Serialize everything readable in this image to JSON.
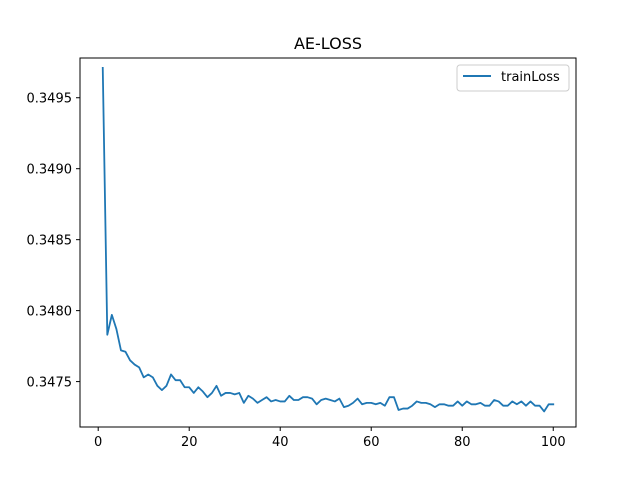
{
  "chart_data": {
    "type": "line",
    "title": "AE-LOSS",
    "xlabel": "",
    "ylabel": "",
    "xlim": [
      -4,
      105
    ],
    "ylim": [
      0.34718,
      0.34978
    ],
    "xticks": [
      0,
      20,
      40,
      60,
      80,
      100
    ],
    "xtick_labels": [
      "0",
      "20",
      "40",
      "60",
      "80",
      "100"
    ],
    "yticks": [
      0.3475,
      0.348,
      0.3485,
      0.349,
      0.3495
    ],
    "ytick_labels": [
      "0.3475",
      "0.3480",
      "0.3485",
      "0.3490",
      "0.3495"
    ],
    "grid": false,
    "legend": {
      "placement": "top-right"
    },
    "series": [
      {
        "name": "trainLoss",
        "color": "#1f77b4",
        "x": [
          1,
          2,
          3,
          4,
          5,
          6,
          7,
          8,
          9,
          10,
          11,
          12,
          13,
          14,
          15,
          16,
          17,
          18,
          19,
          20,
          21,
          22,
          23,
          24,
          25,
          26,
          27,
          28,
          29,
          30,
          31,
          32,
          33,
          34,
          35,
          36,
          37,
          38,
          39,
          40,
          41,
          42,
          43,
          44,
          45,
          46,
          47,
          48,
          49,
          50,
          51,
          52,
          53,
          54,
          55,
          56,
          57,
          58,
          59,
          60,
          61,
          62,
          63,
          64,
          65,
          66,
          67,
          68,
          69,
          70,
          71,
          72,
          73,
          74,
          75,
          76,
          77,
          78,
          79,
          80,
          81,
          82,
          83,
          84,
          85,
          86,
          87,
          88,
          89,
          90,
          91,
          92,
          93,
          94,
          95,
          96,
          97,
          98,
          99,
          100
        ],
        "values": [
          0.34971,
          0.34783,
          0.34797,
          0.34787,
          0.34772,
          0.34771,
          0.34765,
          0.34762,
          0.3476,
          0.34753,
          0.34755,
          0.34753,
          0.34747,
          0.34744,
          0.34747,
          0.34755,
          0.34751,
          0.34751,
          0.34746,
          0.34746,
          0.34742,
          0.34746,
          0.34743,
          0.34739,
          0.34742,
          0.34747,
          0.3474,
          0.34742,
          0.34742,
          0.34741,
          0.34742,
          0.34735,
          0.3474,
          0.34738,
          0.34735,
          0.34737,
          0.34739,
          0.34736,
          0.34737,
          0.34736,
          0.34736,
          0.3474,
          0.34737,
          0.34737,
          0.34739,
          0.34739,
          0.34738,
          0.34734,
          0.34737,
          0.34738,
          0.34737,
          0.34736,
          0.34738,
          0.34732,
          0.34733,
          0.34735,
          0.34738,
          0.34734,
          0.34735,
          0.34735,
          0.34734,
          0.34735,
          0.34733,
          0.34739,
          0.34739,
          0.3473,
          0.34731,
          0.34731,
          0.34733,
          0.34736,
          0.34735,
          0.34735,
          0.34734,
          0.34732,
          0.34734,
          0.34734,
          0.34733,
          0.34733,
          0.34736,
          0.34733,
          0.34736,
          0.34734,
          0.34734,
          0.34735,
          0.34733,
          0.34733,
          0.34737,
          0.34736,
          0.34733,
          0.34733,
          0.34736,
          0.34734,
          0.34736,
          0.34733,
          0.34736,
          0.34733,
          0.34733,
          0.34729,
          0.34734,
          0.34734
        ]
      }
    ]
  }
}
